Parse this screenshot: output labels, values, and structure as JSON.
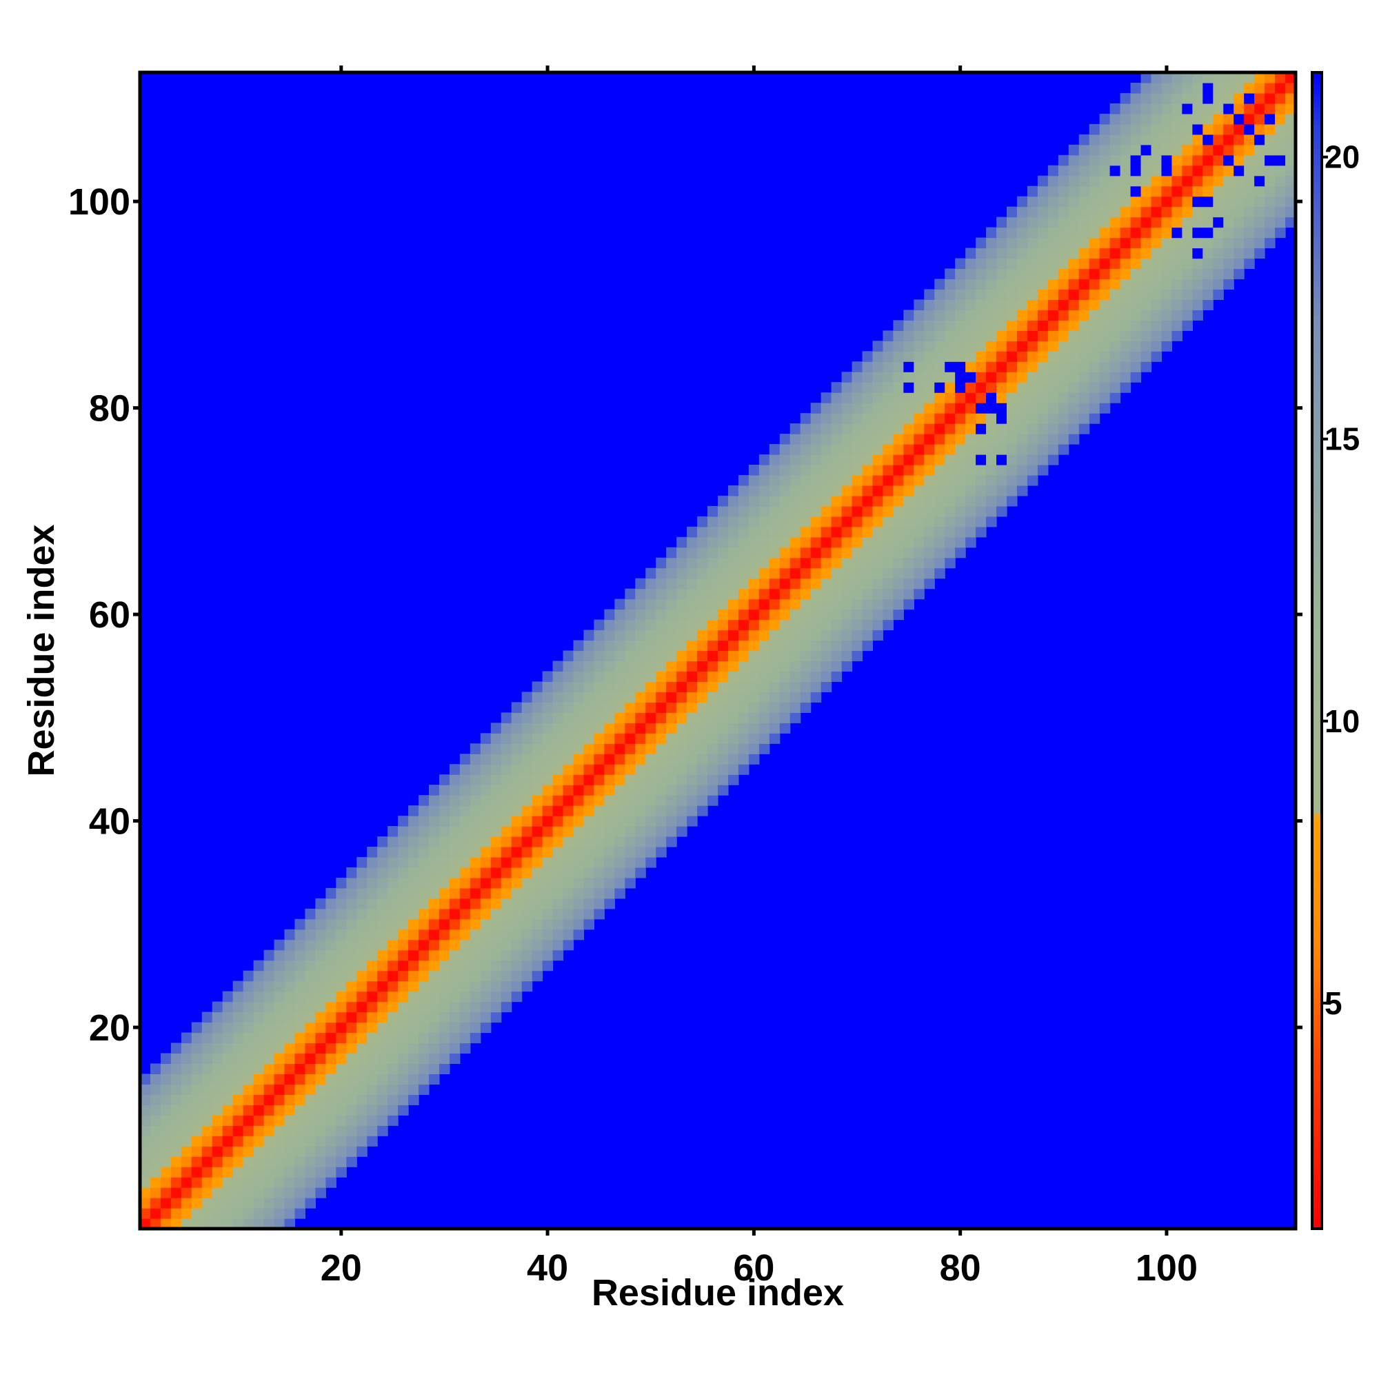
{
  "chart_data": {
    "type": "heatmap",
    "title": "",
    "xlabel": "Residue index",
    "ylabel": "Residue index",
    "n_residues": 112,
    "xlim": [
      1,
      112
    ],
    "ylim": [
      1,
      112
    ],
    "x_ticks": [
      20,
      40,
      60,
      80,
      100
    ],
    "y_ticks": [
      20,
      40,
      60,
      80,
      100
    ],
    "colorbar": {
      "range": [
        1,
        21.5
      ],
      "ticks": [
        5,
        10,
        15,
        20
      ],
      "stops": [
        {
          "value": 1,
          "color": "#ff0000"
        },
        {
          "value": 4,
          "color": "#ff4400"
        },
        {
          "value": 6,
          "color": "#ff8800"
        },
        {
          "value": 8.3,
          "color": "#ffa000"
        },
        {
          "value": 8.4,
          "color": "#a8b88c"
        },
        {
          "value": 12,
          "color": "#9ab498"
        },
        {
          "value": 17,
          "color": "#7a90b8"
        },
        {
          "value": 20.5,
          "color": "#2a40e0"
        },
        {
          "value": 21.5,
          "color": "#0000ff"
        }
      ]
    },
    "matrix_model": {
      "description_of_values": "distance between residues i and j; symmetric about the diagonal",
      "band_profile": [
        {
          "offset": 0,
          "value": 1.5
        },
        {
          "offset": 1,
          "value": 3.8
        },
        {
          "offset": 2,
          "value": 6
        },
        {
          "offset": 3,
          "value": 8
        },
        {
          "offset": 5,
          "value": 10
        },
        {
          "offset": 8,
          "value": 12
        },
        {
          "offset": 11,
          "value": 14.5
        },
        {
          "offset": 13,
          "value": 17
        },
        {
          "offset": 14,
          "value": 19
        },
        {
          "offset": 15,
          "value": 22
        }
      ],
      "background_value": 22,
      "outlier_cells": [
        [
          75,
          82
        ],
        [
          79,
          84
        ],
        [
          80,
          84
        ],
        [
          80,
          83
        ],
        [
          82,
          80
        ],
        [
          82,
          78
        ],
        [
          84,
          75
        ],
        [
          83,
          81
        ],
        [
          95,
          103
        ],
        [
          97,
          101
        ],
        [
          97,
          104
        ],
        [
          98,
          105
        ],
        [
          100,
          103
        ],
        [
          103,
          97
        ],
        [
          104,
          100
        ],
        [
          105,
          98
        ],
        [
          106,
          104
        ],
        [
          107,
          103
        ],
        [
          104,
          110
        ],
        [
          108,
          107
        ],
        [
          109,
          106
        ],
        [
          110,
          108
        ],
        [
          111,
          104
        ],
        [
          102,
          109
        ]
      ]
    }
  }
}
